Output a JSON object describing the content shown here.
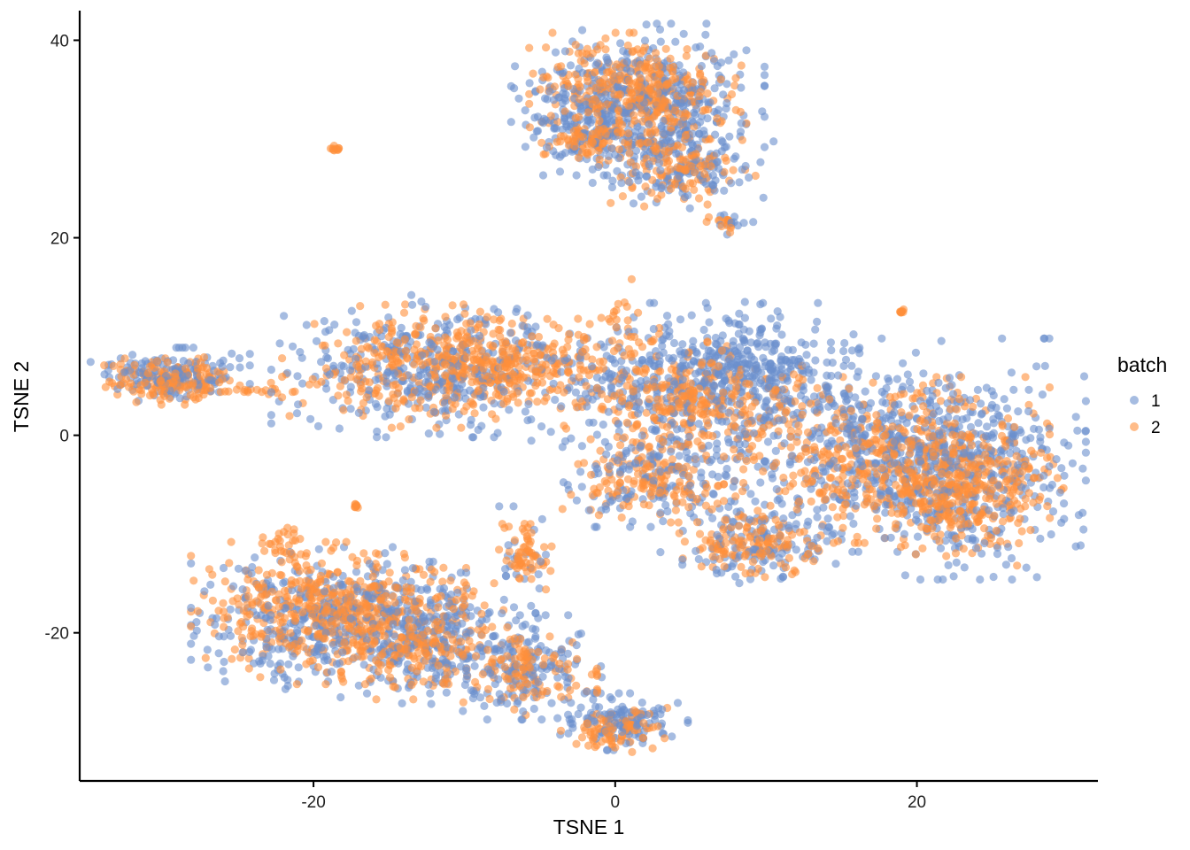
{
  "chart_data": {
    "type": "scatter",
    "title": "",
    "xlabel": "TSNE 1",
    "ylabel": "TSNE 2",
    "xlim": [
      -35.5,
      32
    ],
    "ylim": [
      -35,
      43
    ],
    "x_ticks": [
      -20,
      0,
      20
    ],
    "y_ticks": [
      -20,
      0,
      20,
      40
    ],
    "grid": false,
    "legend": {
      "title": "batch",
      "position": "right",
      "entries": [
        {
          "label": "1",
          "color": "#6A8FCD"
        },
        {
          "label": "2",
          "color": "#FF8F3A"
        }
      ]
    },
    "point_alpha": 0.6,
    "series": [
      {
        "name": "1",
        "color": "#6A8FCD",
        "clusters": [
          {
            "cx": 1.5,
            "cy": 34,
            "sx": 3.5,
            "sy": 3.2,
            "n": 460
          },
          {
            "cx": 4.5,
            "cy": 27.5,
            "sx": 2.5,
            "sy": 2.2,
            "n": 160
          },
          {
            "cx": -2.5,
            "cy": 30.5,
            "sx": 1.5,
            "sy": 1.5,
            "n": 60
          },
          {
            "cx": 7.5,
            "cy": 21.5,
            "sx": 0.8,
            "sy": 0.5,
            "n": 12
          },
          {
            "cx": -29.5,
            "cy": 6,
            "sx": 2.2,
            "sy": 1.2,
            "n": 150
          },
          {
            "cx": -12,
            "cy": 7,
            "sx": 4.5,
            "sy": 3,
            "n": 380
          },
          {
            "cx": 5,
            "cy": 5,
            "sx": 4.5,
            "sy": 3.5,
            "n": 380
          },
          {
            "cx": 9,
            "cy": 7.5,
            "sx": 3,
            "sy": 2.5,
            "n": 200
          },
          {
            "cx": 18,
            "cy": -1,
            "sx": 5.5,
            "sy": 4.5,
            "n": 520
          },
          {
            "cx": 23,
            "cy": -5,
            "sx": 3.5,
            "sy": 4,
            "n": 300
          },
          {
            "cx": 2.5,
            "cy": -4,
            "sx": 3,
            "sy": 2.2,
            "n": 140
          },
          {
            "cx": 9,
            "cy": -11,
            "sx": 2.5,
            "sy": 1.8,
            "n": 130
          },
          {
            "cx": -6,
            "cy": -12,
            "sx": 1,
            "sy": 2,
            "n": 20
          },
          {
            "cx": -19,
            "cy": -19,
            "sx": 3.8,
            "sy": 3.2,
            "n": 380
          },
          {
            "cx": -12,
            "cy": -20,
            "sx": 2.8,
            "sy": 3,
            "n": 240
          },
          {
            "cx": -6,
            "cy": -23.5,
            "sx": 2.2,
            "sy": 2.2,
            "n": 150
          },
          {
            "cx": 0.5,
            "cy": -29,
            "sx": 1.8,
            "sy": 1.2,
            "n": 120
          }
        ]
      },
      {
        "name": "2",
        "color": "#FF8F3A",
        "clusters": [
          {
            "cx": 1.5,
            "cy": 35,
            "sx": 3,
            "sy": 2.4,
            "n": 360
          },
          {
            "cx": 4.5,
            "cy": 27.5,
            "sx": 2,
            "sy": 1.8,
            "n": 130
          },
          {
            "cx": -2,
            "cy": 30,
            "sx": 1.2,
            "sy": 1.2,
            "n": 70
          },
          {
            "cx": 7.5,
            "cy": 21.5,
            "sx": 0.6,
            "sy": 0.4,
            "n": 15
          },
          {
            "cx": -18.5,
            "cy": 29,
            "sx": 0.15,
            "sy": 0.15,
            "n": 10
          },
          {
            "cx": -29.5,
            "cy": 5.5,
            "sx": 2,
            "sy": 1,
            "n": 160
          },
          {
            "cx": -24.5,
            "cy": 4.6,
            "sx": 1.8,
            "sy": 0.3,
            "n": 25
          },
          {
            "cx": -12,
            "cy": 7,
            "sx": 4.2,
            "sy": 2.6,
            "n": 380
          },
          {
            "cx": -6.5,
            "cy": 7,
            "sx": 3,
            "sy": 2,
            "n": 160
          },
          {
            "cx": 1,
            "cy": 11,
            "sx": 0.8,
            "sy": 2,
            "n": 30
          },
          {
            "cx": 5,
            "cy": 3.5,
            "sx": 3.5,
            "sy": 2.5,
            "n": 300
          },
          {
            "cx": 19,
            "cy": 12.5,
            "sx": 0.1,
            "sy": 0.1,
            "n": 8
          },
          {
            "cx": 18,
            "cy": -2.5,
            "sx": 4.5,
            "sy": 3.5,
            "n": 460
          },
          {
            "cx": 23,
            "cy": -6,
            "sx": 2.8,
            "sy": 3,
            "n": 320
          },
          {
            "cx": 2.5,
            "cy": -4.5,
            "sx": 2.5,
            "sy": 1.8,
            "n": 150
          },
          {
            "cx": 9,
            "cy": -11,
            "sx": 2,
            "sy": 1.4,
            "n": 130
          },
          {
            "cx": -6,
            "cy": -12,
            "sx": 0.8,
            "sy": 1.8,
            "n": 60
          },
          {
            "cx": -17.2,
            "cy": -7.2,
            "sx": 0.1,
            "sy": 0.1,
            "n": 8
          },
          {
            "cx": -22,
            "cy": -11,
            "sx": 0.8,
            "sy": 1,
            "n": 25
          },
          {
            "cx": -19,
            "cy": -18,
            "sx": 3.8,
            "sy": 3,
            "n": 460
          },
          {
            "cx": -13,
            "cy": -20.5,
            "sx": 2.8,
            "sy": 2.6,
            "n": 220
          },
          {
            "cx": -6,
            "cy": -24,
            "sx": 2,
            "sy": 1.8,
            "n": 110
          },
          {
            "cx": 0,
            "cy": -30,
            "sx": 1.5,
            "sy": 1,
            "n": 90
          }
        ]
      }
    ]
  }
}
